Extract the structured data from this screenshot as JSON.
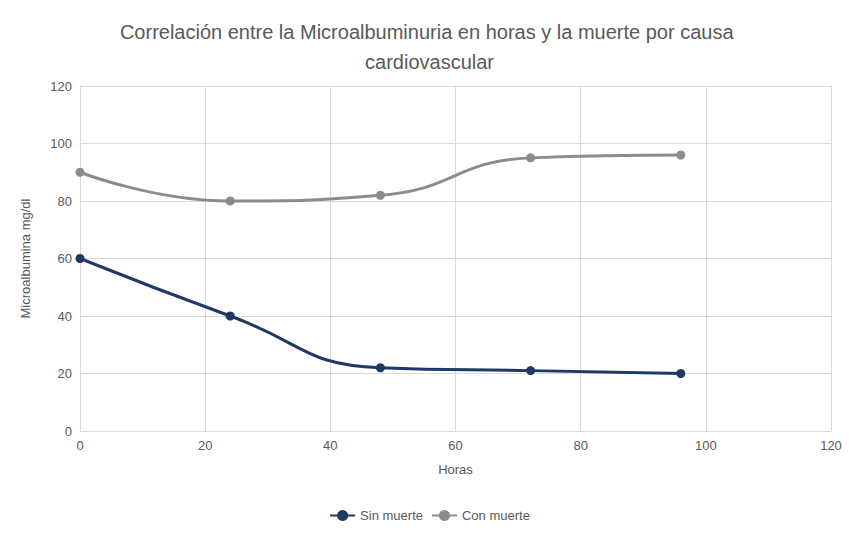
{
  "chart_data": {
    "type": "line",
    "title": "Correlación entre la Microalbuminuria en horas y la muerte por causa cardiovascular",
    "x_label": "Horas",
    "y_label": "Microalbumina mg/dl",
    "x": [
      0,
      24,
      48,
      72,
      96
    ],
    "series": [
      {
        "name": "Sin muerte",
        "color": "#203864",
        "values": [
          60,
          40,
          22,
          21,
          20
        ],
        "marker": "circle",
        "line_style": "solid"
      },
      {
        "name": "Con muerte",
        "color": "#8c8c8c",
        "values": [
          90,
          80,
          82,
          95,
          96
        ],
        "marker": "circle",
        "line_style": "solid"
      }
    ],
    "xlim": [
      0,
      120
    ],
    "xticks": [
      0,
      20,
      40,
      60,
      80,
      100,
      120
    ],
    "ylim": [
      0,
      120
    ],
    "yticks": [
      0,
      20,
      40,
      60,
      80,
      100,
      120
    ],
    "grid": true,
    "legend": "bottom"
  }
}
